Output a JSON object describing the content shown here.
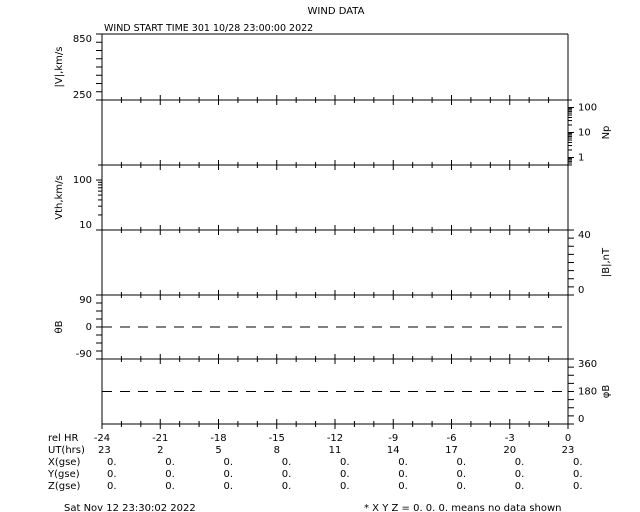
{
  "chart_data": {
    "type": "line",
    "title": "WIND DATA",
    "subtitle": "WIND START TIME 301 10/28 23:00:00 2022",
    "grid": false,
    "x": {
      "label_rows": [
        {
          "label": "rel HR",
          "values": [
            "-24",
            "-21",
            "-18",
            "-15",
            "-12",
            "-9",
            "-6",
            "-3",
            "0"
          ]
        },
        {
          "label": "UT(hrs)",
          "values": [
            "23",
            "2",
            "5",
            "8",
            "11",
            "14",
            "17",
            "20",
            "23"
          ]
        },
        {
          "label": "X(gse)",
          "values": [
            "0.",
            "0.",
            "0.",
            "0.",
            "0.",
            "0.",
            "0.",
            "0.",
            "0."
          ]
        },
        {
          "label": "Y(gse)",
          "values": [
            "0.",
            "0.",
            "0.",
            "0.",
            "0.",
            "0.",
            "0.",
            "0.",
            "0."
          ]
        },
        {
          "label": "Z(gse)",
          "values": [
            "0.",
            "0.",
            "0.",
            "0.",
            "0.",
            "0.",
            "0.",
            "0.",
            "0."
          ]
        }
      ],
      "range": [
        -24,
        0
      ]
    },
    "panels": [
      {
        "ylabel": "|V|,km/s",
        "side": "left",
        "scale": "linear",
        "ylim": [
          250,
          850
        ],
        "ticks": [
          "850",
          "250"
        ],
        "series": []
      },
      {
        "ylabel": "Np",
        "side": "right",
        "scale": "log",
        "ylim": [
          0.5,
          200
        ],
        "ticks": [
          "100",
          "10",
          "1"
        ],
        "series": []
      },
      {
        "ylabel": "Vth,km/s",
        "side": "left",
        "scale": "log",
        "ylim": [
          10,
          200
        ],
        "ticks": [
          "100",
          "10"
        ],
        "series": []
      },
      {
        "ylabel": "|B|,nT",
        "side": "right",
        "scale": "linear",
        "ylim": [
          0,
          40
        ],
        "ticks": [
          "40",
          "0"
        ],
        "series": []
      },
      {
        "ylabel": "θB",
        "side": "left",
        "scale": "linear",
        "ylim": [
          -90,
          90
        ],
        "ticks": [
          "90",
          "0",
          "-90"
        ],
        "reference_line": 0,
        "series": []
      },
      {
        "ylabel": "φB",
        "side": "right",
        "scale": "linear",
        "ylim": [
          0,
          360
        ],
        "ticks": [
          "360",
          "180",
          "0"
        ],
        "reference_line": 180,
        "series": []
      }
    ]
  },
  "footer": {
    "timestamp": "Sat Nov 12 23:30:02 2022",
    "note": "* X Y Z = 0. 0. 0. means no data shown"
  }
}
